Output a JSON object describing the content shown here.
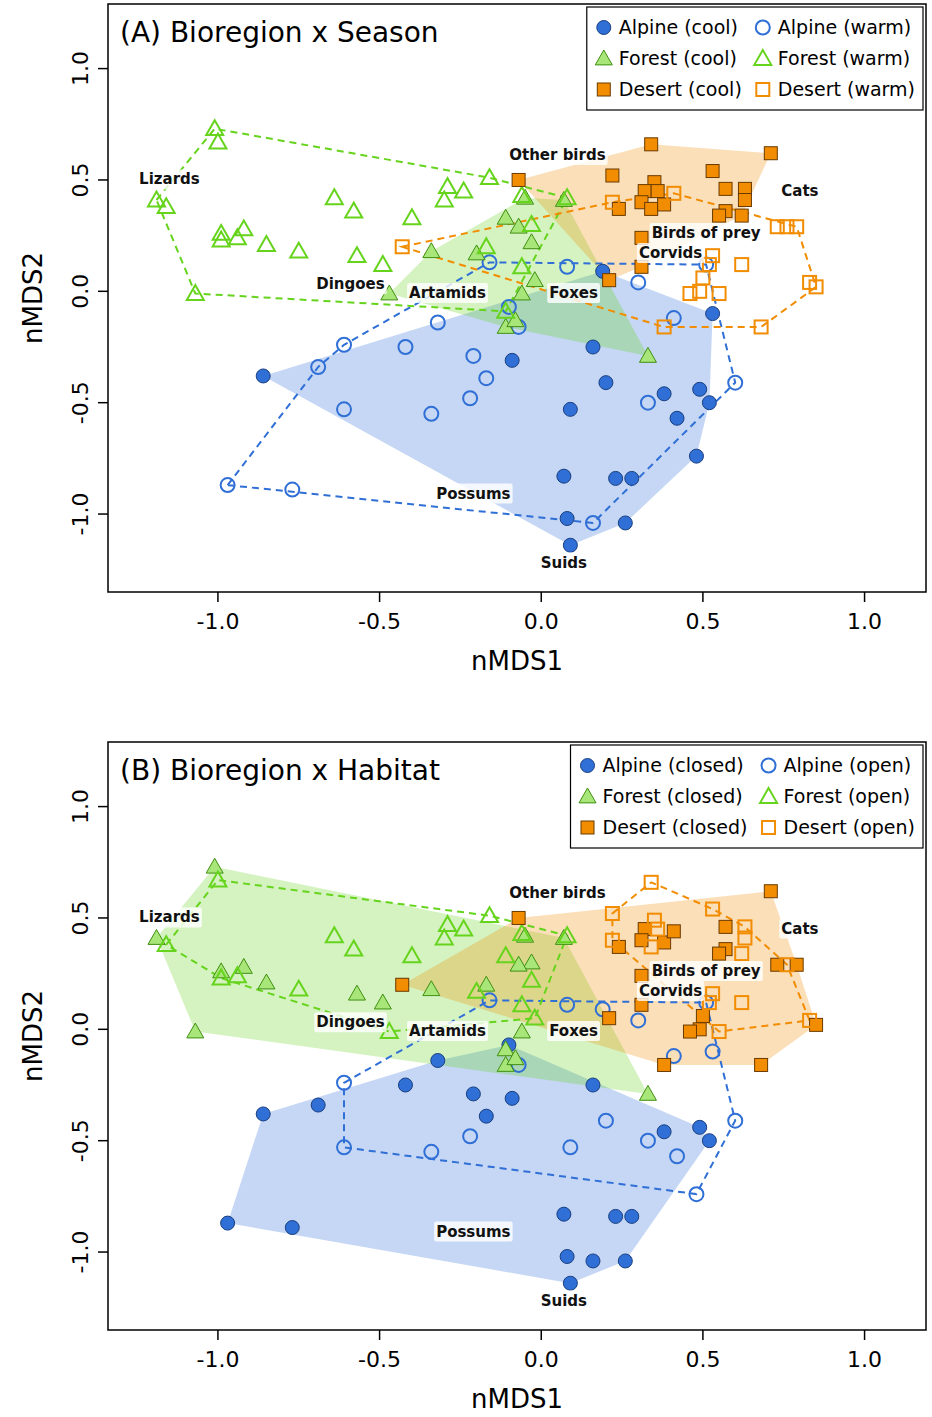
{
  "chart_data": [
    {
      "type": "scatter",
      "title": "(A) Bioregion x Season",
      "xlabel": "nMDS1",
      "ylabel": "nMDS2",
      "xlim": [
        -1.34,
        1.19
      ],
      "ylim": [
        -1.35,
        1.29
      ],
      "xticks": [
        {
          "value": -1,
          "label": "-1.0"
        },
        {
          "value": -0.5,
          "label": "-0.5"
        },
        {
          "value": 0,
          "label": "0.0"
        },
        {
          "value": 0.5,
          "label": "0.5"
        },
        {
          "value": 1,
          "label": "1.0"
        }
      ],
      "yticks": [
        {
          "value": -1,
          "label": "-1.0"
        },
        {
          "value": -0.5,
          "label": "-0.5"
        },
        {
          "value": 0,
          "label": "0.0"
        },
        {
          "value": 0.5,
          "label": "0.5"
        },
        {
          "value": 1,
          "label": "1.0"
        }
      ],
      "legend": "top-right",
      "annotations": [
        "Lizards",
        "Other birds",
        "Cats",
        "Birds of prey",
        "Corvids",
        "Dingoes",
        "Artamids",
        "Foxes",
        "Possums",
        "Suids"
      ],
      "series": [
        {
          "name": "Alpine (cool)",
          "color": "#2f6fd6",
          "marker": "circle",
          "x": [
            -0.86,
            0.19,
            0.53,
            -0.09,
            0.16,
            0.09,
            0.2,
            0.38,
            0.42,
            0.49,
            0.52,
            0.48,
            0.07,
            0.23,
            0.28,
            0.08,
            0.26,
            0.09
          ],
          "values": [
            -0.38,
            0.09,
            -0.1,
            -0.31,
            -0.25,
            -0.53,
            -0.41,
            -0.46,
            -0.57,
            -0.44,
            -0.5,
            -0.74,
            -0.83,
            -0.84,
            -0.84,
            -1.02,
            -1.04,
            -1.14
          ]
        },
        {
          "name": "Alpine (warm)",
          "color": "#2f6fd6",
          "marker": "circle-open",
          "x": [
            -0.97,
            -0.77,
            -0.69,
            -0.61,
            -0.61,
            -0.42,
            -0.32,
            -0.34,
            -0.22,
            -0.21,
            -0.17,
            -0.16,
            -0.1,
            -0.07,
            0.08,
            0.3,
            0.41,
            0.33,
            0.16,
            0.6,
            0.51
          ],
          "values": [
            -0.87,
            -0.89,
            -0.34,
            -0.24,
            -0.53,
            -0.25,
            -0.14,
            -0.55,
            -0.48,
            -0.29,
            -0.39,
            0.13,
            -0.07,
            -0.16,
            0.11,
            0.04,
            -0.12,
            -0.5,
            -1.04,
            -0.41,
            0.12
          ]
        },
        {
          "name": "Forest (cool)",
          "color": "#66d41c",
          "marker": "triangle",
          "x": [
            -0.34,
            -0.2,
            -0.11,
            -0.07,
            -0.05,
            -0.03,
            0.07,
            -0.06,
            -0.11,
            0.33,
            -0.47,
            -0.08,
            -0.02
          ],
          "values": [
            0.18,
            0.17,
            0.33,
            0.29,
            0.42,
            0.22,
            0.41,
            -0.01,
            -0.16,
            -0.29,
            -0.01,
            -0.13,
            0.05
          ]
        },
        {
          "name": "Forest (warm)",
          "color": "#66d41c",
          "marker": "triangle-open",
          "x": [
            -1.01,
            -1.0,
            -1.19,
            -1.16,
            -1.07,
            -0.99,
            -0.99,
            -0.94,
            -0.92,
            -0.85,
            -0.75,
            -0.64,
            -0.58,
            -0.57,
            -0.49,
            -0.4,
            -0.3,
            -0.29,
            -0.24,
            -0.16,
            -0.06,
            -0.03,
            -0.06,
            -0.17,
            0.08,
            -0.11
          ],
          "values": [
            0.73,
            0.67,
            0.41,
            0.38,
            -0.01,
            0.26,
            0.23,
            0.24,
            0.28,
            0.21,
            0.18,
            0.42,
            0.36,
            0.16,
            0.12,
            0.33,
            0.41,
            0.47,
            0.45,
            0.51,
            0.43,
            0.3,
            0.11,
            0.2,
            0.42,
            -0.09
          ]
        },
        {
          "name": "Desert (cool)",
          "color": "#f28c00",
          "marker": "square",
          "x": [
            -0.07,
            0.22,
            0.34,
            0.71,
            0.35,
            0.32,
            0.36,
            0.31,
            0.24,
            0.34,
            0.38,
            0.53,
            0.57,
            0.63,
            0.63,
            0.57,
            0.55,
            0.62,
            0.31,
            0.21,
            0.31
          ],
          "values": [
            0.5,
            0.52,
            0.66,
            0.62,
            0.49,
            0.45,
            0.45,
            0.4,
            0.37,
            0.37,
            0.39,
            0.54,
            0.46,
            0.46,
            0.41,
            0.36,
            0.34,
            0.34,
            0.24,
            0.05,
            0.11
          ]
        },
        {
          "name": "Desert (warm)",
          "color": "#f28c00",
          "marker": "square-open",
          "x": [
            -0.43,
            0.22,
            0.41,
            0.52,
            0.53,
            0.62,
            0.5,
            0.49,
            0.38,
            0.46,
            0.68,
            0.73,
            0.76,
            0.79,
            0.83,
            0.85,
            0.55
          ],
          "values": [
            0.2,
            0.4,
            0.44,
            0.12,
            0.16,
            0.12,
            0.06,
            0.0,
            -0.16,
            -0.01,
            -0.16,
            0.29,
            0.29,
            0.29,
            0.04,
            0.02,
            -0.01
          ]
        }
      ]
    },
    {
      "type": "scatter",
      "title": "(B) Bioregion x Habitat",
      "xlabel": "nMDS1",
      "ylabel": "nMDS2",
      "xlim": [
        -1.34,
        1.19
      ],
      "ylim": [
        -1.35,
        1.29
      ],
      "xticks": [
        {
          "value": -1,
          "label": "-1.0"
        },
        {
          "value": -0.5,
          "label": "-0.5"
        },
        {
          "value": 0,
          "label": "0.0"
        },
        {
          "value": 0.5,
          "label": "0.5"
        },
        {
          "value": 1,
          "label": "1.0"
        }
      ],
      "yticks": [
        {
          "value": -1,
          "label": "-1.0"
        },
        {
          "value": -0.5,
          "label": "-0.5"
        },
        {
          "value": 0,
          "label": "0.0"
        },
        {
          "value": 0.5,
          "label": "0.5"
        },
        {
          "value": 1,
          "label": "1.0"
        }
      ],
      "legend": "top-right",
      "annotations": [
        "Lizards",
        "Other birds",
        "Cats",
        "Birds of prey",
        "Corvids",
        "Dingoes",
        "Artamids",
        "Foxes",
        "Possums",
        "Suids"
      ],
      "series": [
        {
          "name": "Alpine (closed)",
          "color": "#2f6fd6",
          "marker": "circle",
          "x": [
            -0.86,
            -0.09,
            0.16,
            0.38,
            0.49,
            0.52,
            0.07,
            0.23,
            0.28,
            0.08,
            0.26,
            0.09,
            -0.97,
            -0.77,
            -0.69,
            -0.42,
            -0.32,
            -0.21,
            -0.17,
            -0.1,
            0.16
          ],
          "values": [
            -0.38,
            -0.31,
            -0.25,
            -0.46,
            -0.44,
            -0.5,
            -0.83,
            -0.84,
            -0.84,
            -1.02,
            -1.04,
            -1.14,
            -0.87,
            -0.89,
            -0.34,
            -0.25,
            -0.14,
            -0.29,
            -0.39,
            -0.07,
            -1.04
          ]
        },
        {
          "name": "Alpine (open)",
          "color": "#2f6fd6",
          "marker": "circle-open",
          "x": [
            0.19,
            0.53,
            0.09,
            0.2,
            0.42,
            0.48,
            -0.61,
            -0.61,
            -0.34,
            -0.22,
            -0.16,
            -0.07,
            0.08,
            0.3,
            0.41,
            0.33,
            0.6,
            0.51
          ],
          "values": [
            0.09,
            -0.1,
            -0.53,
            -0.41,
            -0.57,
            -0.74,
            -0.24,
            -0.53,
            -0.55,
            -0.48,
            0.13,
            -0.16,
            0.11,
            0.04,
            -0.12,
            -0.5,
            -0.41,
            0.12
          ]
        },
        {
          "name": "Forest (closed)",
          "color": "#66d41c",
          "marker": "triangle",
          "x": [
            -1.01,
            -1.19,
            -1.07,
            -0.99,
            -0.92,
            -0.85,
            -0.57,
            -0.49,
            -0.03,
            -0.17,
            -0.11,
            -0.34,
            -0.07,
            -0.05,
            0.07,
            -0.06,
            -0.11,
            0.33,
            -0.08
          ],
          "values": [
            0.73,
            0.41,
            -0.01,
            0.26,
            0.28,
            0.21,
            0.16,
            0.12,
            0.3,
            0.2,
            -0.09,
            0.18,
            0.29,
            0.42,
            0.41,
            -0.01,
            -0.16,
            -0.29,
            -0.13
          ]
        },
        {
          "name": "Forest (open)",
          "color": "#66d41c",
          "marker": "triangle-open",
          "x": [
            -1.0,
            -1.16,
            -0.99,
            -0.94,
            -0.75,
            -0.64,
            -0.58,
            -0.4,
            -0.3,
            -0.29,
            -0.24,
            -0.16,
            -0.06,
            -0.06,
            0.08,
            -0.2,
            -0.11,
            -0.03,
            -0.47,
            -0.02
          ],
          "values": [
            0.67,
            0.38,
            0.23,
            0.24,
            0.18,
            0.42,
            0.36,
            0.33,
            0.41,
            0.47,
            0.45,
            0.51,
            0.43,
            0.11,
            0.42,
            0.17,
            0.33,
            0.22,
            -0.01,
            0.05
          ]
        },
        {
          "name": "Desert (closed)",
          "color": "#f28c00",
          "marker": "square",
          "x": [
            -0.07,
            0.71,
            0.32,
            0.31,
            0.24,
            0.38,
            0.57,
            0.57,
            0.55,
            0.31,
            0.21,
            0.31,
            -0.43,
            0.41,
            0.5,
            0.49,
            0.38,
            0.46,
            0.68,
            0.73,
            0.79,
            0.85
          ],
          "values": [
            0.5,
            0.62,
            0.45,
            0.4,
            0.37,
            0.39,
            0.46,
            0.36,
            0.34,
            0.24,
            0.05,
            0.11,
            0.2,
            0.44,
            0.06,
            0.0,
            -0.16,
            -0.01,
            -0.16,
            0.29,
            0.29,
            0.02
          ]
        },
        {
          "name": "Desert (open)",
          "color": "#f28c00",
          "marker": "square-open",
          "x": [
            0.22,
            0.34,
            0.35,
            0.36,
            0.34,
            0.53,
            0.63,
            0.63,
            0.62,
            0.22,
            0.52,
            0.53,
            0.62,
            0.76,
            0.83,
            0.55
          ],
          "values": [
            0.52,
            0.66,
            0.49,
            0.45,
            0.37,
            0.54,
            0.46,
            0.41,
            0.34,
            0.4,
            0.12,
            0.16,
            0.12,
            0.29,
            0.04,
            -0.01
          ]
        }
      ]
    }
  ]
}
